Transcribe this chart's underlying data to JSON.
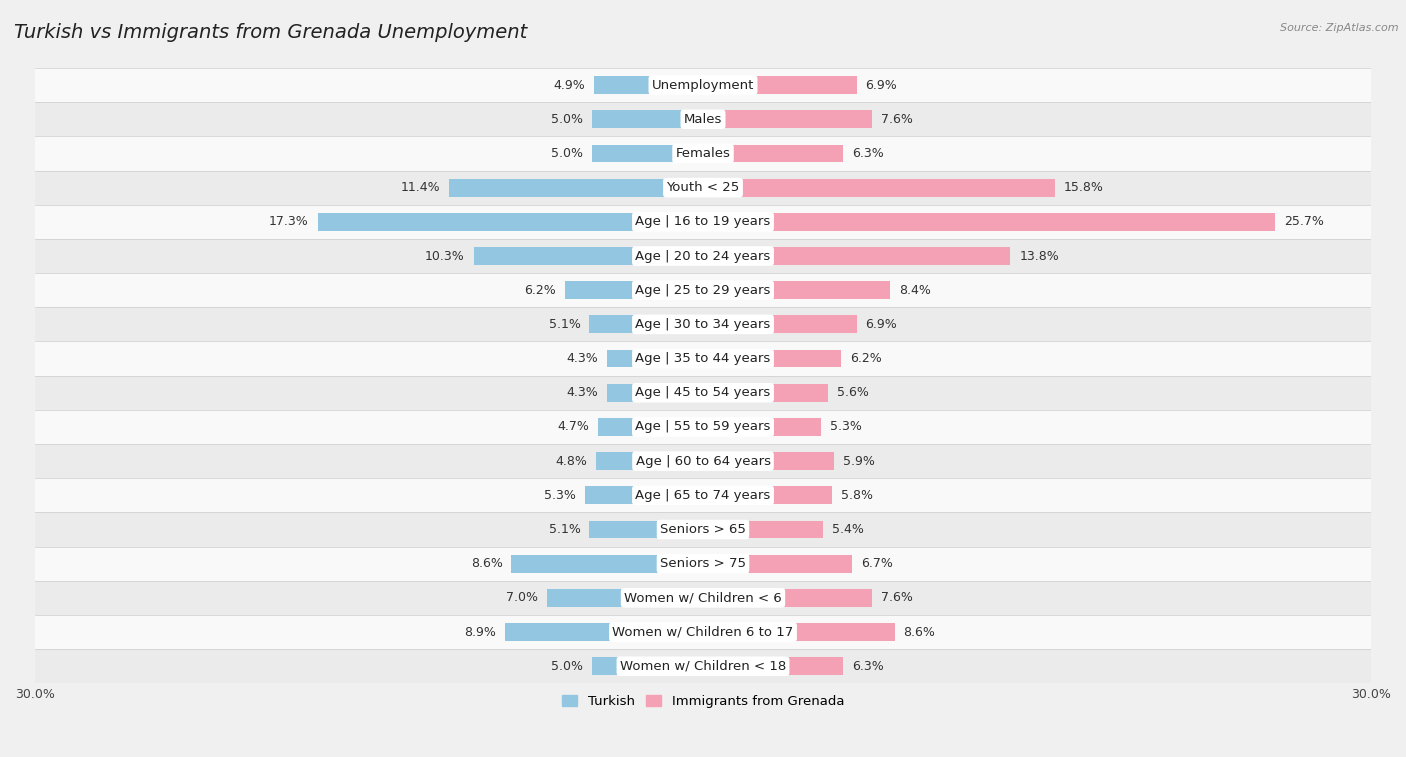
{
  "title": "Turkish vs Immigrants from Grenada Unemployment",
  "source": "Source: ZipAtlas.com",
  "categories": [
    "Unemployment",
    "Males",
    "Females",
    "Youth < 25",
    "Age | 16 to 19 years",
    "Age | 20 to 24 years",
    "Age | 25 to 29 years",
    "Age | 30 to 34 years",
    "Age | 35 to 44 years",
    "Age | 45 to 54 years",
    "Age | 55 to 59 years",
    "Age | 60 to 64 years",
    "Age | 65 to 74 years",
    "Seniors > 65",
    "Seniors > 75",
    "Women w/ Children < 6",
    "Women w/ Children 6 to 17",
    "Women w/ Children < 18"
  ],
  "turkish": [
    4.9,
    5.0,
    5.0,
    11.4,
    17.3,
    10.3,
    6.2,
    5.1,
    4.3,
    4.3,
    4.7,
    4.8,
    5.3,
    5.1,
    8.6,
    7.0,
    8.9,
    5.0
  ],
  "grenada": [
    6.9,
    7.6,
    6.3,
    15.8,
    25.7,
    13.8,
    8.4,
    6.9,
    6.2,
    5.6,
    5.3,
    5.9,
    5.8,
    5.4,
    6.7,
    7.6,
    8.6,
    6.3
  ],
  "turkish_color": "#93c6e0",
  "grenada_color": "#f4a0b5",
  "axis_max": 30.0,
  "bg_color": "#f0f0f0",
  "row_colors": [
    "#f9f9f9",
    "#ebebeb"
  ],
  "title_fontsize": 14,
  "label_fontsize": 9.5,
  "value_fontsize": 9,
  "tick_fontsize": 9
}
